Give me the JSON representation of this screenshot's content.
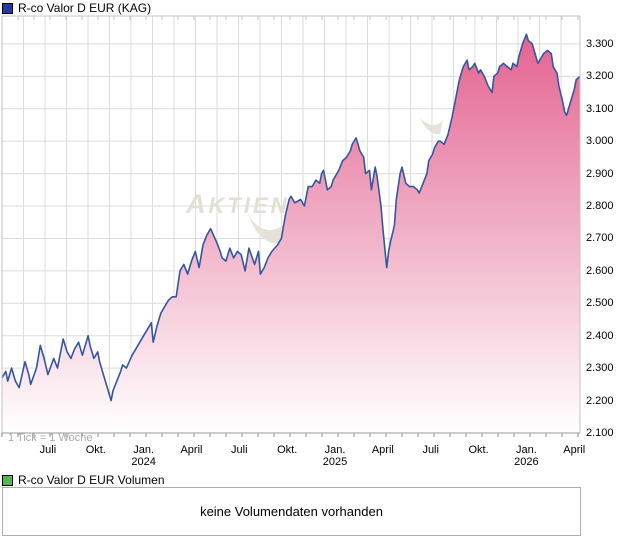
{
  "price_panel": {
    "legend": {
      "swatch_color": "#2438a0",
      "label": "R-co Valor D EUR (KAG)"
    },
    "tick_note": "1 Tick = 1 Woche"
  },
  "volume_panel": {
    "legend": {
      "swatch_color": "#55b455",
      "label": "R-co Valor D EUR Volumen"
    },
    "message": "keine Volumendaten vorhanden"
  },
  "watermark": {
    "text_big": "A",
    "text_rest": "KTIEN"
  },
  "colors": {
    "line": "#35569e",
    "fill_top": "#e25c8c",
    "fill_bottom": "#ffffff",
    "grid": "#dcdcdc",
    "axis": "#999999",
    "border": "#c4c4c4",
    "watermark": "#e6e2d8"
  },
  "chart_data": {
    "type": "area",
    "title": "R-co Valor D EUR (KAG)",
    "xlabel": "",
    "ylabel": "",
    "grid": true,
    "legend_position": "top-left",
    "xlim": [
      2023.26,
      2026.28
    ],
    "ylim": [
      2.1,
      3.386
    ],
    "y_ticks": [
      {
        "v": 3.3,
        "label": "3.300"
      },
      {
        "v": 3.2,
        "label": "3.200"
      },
      {
        "v": 3.1,
        "label": "3.100"
      },
      {
        "v": 3.0,
        "label": "3.000"
      },
      {
        "v": 2.9,
        "label": "2.900"
      },
      {
        "v": 2.8,
        "label": "2.800"
      },
      {
        "v": 2.7,
        "label": "2.700"
      },
      {
        "v": 2.6,
        "label": "2.600"
      },
      {
        "v": 2.5,
        "label": "2.500"
      },
      {
        "v": 2.4,
        "label": "2.400"
      },
      {
        "v": 2.3,
        "label": "2.300"
      },
      {
        "v": 2.2,
        "label": "2.200"
      },
      {
        "v": 2.1,
        "label": "2.100"
      }
    ],
    "x_ticks": [
      {
        "t": 2023.5,
        "label": "Juli"
      },
      {
        "t": 2023.75,
        "label": "Okt."
      },
      {
        "t": 2024.0,
        "label": "Jan.",
        "sublabel": "2024"
      },
      {
        "t": 2024.25,
        "label": "April"
      },
      {
        "t": 2024.5,
        "label": "Juli"
      },
      {
        "t": 2024.75,
        "label": "Okt."
      },
      {
        "t": 2025.0,
        "label": "Jan.",
        "sublabel": "2025"
      },
      {
        "t": 2025.25,
        "label": "April"
      },
      {
        "t": 2025.5,
        "label": "Juli"
      },
      {
        "t": 2025.75,
        "label": "Okt."
      },
      {
        "t": 2026.0,
        "label": "Jan.",
        "sublabel": "2026"
      },
      {
        "t": 2026.25,
        "label": "April"
      }
    ],
    "series": [
      {
        "name": "R-co Valor D EUR (KAG)",
        "points": [
          [
            2023.26,
            2.27
          ],
          [
            2023.28,
            2.29
          ],
          [
            2023.29,
            2.26
          ],
          [
            2023.31,
            2.3
          ],
          [
            2023.33,
            2.26
          ],
          [
            2023.35,
            2.24
          ],
          [
            2023.38,
            2.32
          ],
          [
            2023.4,
            2.28
          ],
          [
            2023.41,
            2.25
          ],
          [
            2023.44,
            2.3
          ],
          [
            2023.46,
            2.37
          ],
          [
            2023.48,
            2.33
          ],
          [
            2023.5,
            2.28
          ],
          [
            2023.53,
            2.33
          ],
          [
            2023.55,
            2.3
          ],
          [
            2023.58,
            2.39
          ],
          [
            2023.6,
            2.35
          ],
          [
            2023.62,
            2.33
          ],
          [
            2023.64,
            2.36
          ],
          [
            2023.66,
            2.38
          ],
          [
            2023.68,
            2.34
          ],
          [
            2023.71,
            2.4
          ],
          [
            2023.72,
            2.37
          ],
          [
            2023.74,
            2.33
          ],
          [
            2023.76,
            2.35
          ],
          [
            2023.77,
            2.32
          ],
          [
            2023.79,
            2.28
          ],
          [
            2023.81,
            2.24
          ],
          [
            2023.83,
            2.2
          ],
          [
            2023.84,
            2.23
          ],
          [
            2023.86,
            2.26
          ],
          [
            2023.88,
            2.29
          ],
          [
            2023.89,
            2.31
          ],
          [
            2023.91,
            2.3
          ],
          [
            2023.94,
            2.34
          ],
          [
            2023.96,
            2.36
          ],
          [
            2023.98,
            2.38
          ],
          [
            2024.0,
            2.4
          ],
          [
            2024.02,
            2.42
          ],
          [
            2024.04,
            2.44
          ],
          [
            2024.05,
            2.38
          ],
          [
            2024.07,
            2.43
          ],
          [
            2024.09,
            2.47
          ],
          [
            2024.11,
            2.49
          ],
          [
            2024.13,
            2.51
          ],
          [
            2024.15,
            2.52
          ],
          [
            2024.17,
            2.52
          ],
          [
            2024.19,
            2.6
          ],
          [
            2024.21,
            2.62
          ],
          [
            2024.23,
            2.59
          ],
          [
            2024.25,
            2.63
          ],
          [
            2024.27,
            2.66
          ],
          [
            2024.29,
            2.61
          ],
          [
            2024.31,
            2.68
          ],
          [
            2024.33,
            2.71
          ],
          [
            2024.35,
            2.73
          ],
          [
            2024.38,
            2.69
          ],
          [
            2024.4,
            2.66
          ],
          [
            2024.41,
            2.64
          ],
          [
            2024.43,
            2.63
          ],
          [
            2024.45,
            2.67
          ],
          [
            2024.47,
            2.64
          ],
          [
            2024.49,
            2.66
          ],
          [
            2024.51,
            2.65
          ],
          [
            2024.53,
            2.6
          ],
          [
            2024.55,
            2.67
          ],
          [
            2024.58,
            2.62
          ],
          [
            2024.6,
            2.66
          ],
          [
            2024.61,
            2.59
          ],
          [
            2024.63,
            2.61
          ],
          [
            2024.65,
            2.64
          ],
          [
            2024.67,
            2.66
          ],
          [
            2024.7,
            2.68
          ],
          [
            2024.72,
            2.7
          ],
          [
            2024.74,
            2.77
          ],
          [
            2024.76,
            2.82
          ],
          [
            2024.77,
            2.83
          ],
          [
            2024.79,
            2.81
          ],
          [
            2024.82,
            2.82
          ],
          [
            2024.84,
            2.8
          ],
          [
            2024.86,
            2.86
          ],
          [
            2024.88,
            2.86
          ],
          [
            2024.9,
            2.88
          ],
          [
            2024.92,
            2.87
          ],
          [
            2024.93,
            2.9
          ],
          [
            2024.94,
            2.91
          ],
          [
            2024.96,
            2.85
          ],
          [
            2024.98,
            2.86
          ],
          [
            2024.99,
            2.88
          ],
          [
            2025.02,
            2.91
          ],
          [
            2025.04,
            2.94
          ],
          [
            2025.06,
            2.95
          ],
          [
            2025.08,
            2.97
          ],
          [
            2025.09,
            2.99
          ],
          [
            2025.11,
            3.01
          ],
          [
            2025.13,
            2.97
          ],
          [
            2025.15,
            2.95
          ],
          [
            2025.16,
            2.9
          ],
          [
            2025.18,
            2.91
          ],
          [
            2025.19,
            2.85
          ],
          [
            2025.21,
            2.92
          ],
          [
            2025.22,
            2.89
          ],
          [
            2025.24,
            2.8
          ],
          [
            2025.25,
            2.73
          ],
          [
            2025.27,
            2.61
          ],
          [
            2025.28,
            2.66
          ],
          [
            2025.29,
            2.69
          ],
          [
            2025.31,
            2.74
          ],
          [
            2025.32,
            2.82
          ],
          [
            2025.34,
            2.9
          ],
          [
            2025.35,
            2.92
          ],
          [
            2025.37,
            2.87
          ],
          [
            2025.39,
            2.86
          ],
          [
            2025.41,
            2.86
          ],
          [
            2025.43,
            2.85
          ],
          [
            2025.44,
            2.84
          ],
          [
            2025.46,
            2.87
          ],
          [
            2025.48,
            2.9
          ],
          [
            2025.49,
            2.94
          ],
          [
            2025.51,
            2.96
          ],
          [
            2025.52,
            2.98
          ],
          [
            2025.54,
            3.0
          ],
          [
            2025.55,
            3.0
          ],
          [
            2025.57,
            2.99
          ],
          [
            2025.59,
            3.02
          ],
          [
            2025.61,
            3.07
          ],
          [
            2025.63,
            3.13
          ],
          [
            2025.65,
            3.19
          ],
          [
            2025.67,
            3.23
          ],
          [
            2025.69,
            3.25
          ],
          [
            2025.7,
            3.22
          ],
          [
            2025.72,
            3.23
          ],
          [
            2025.73,
            3.24
          ],
          [
            2025.75,
            3.21
          ],
          [
            2025.76,
            3.22
          ],
          [
            2025.78,
            3.2
          ],
          [
            2025.8,
            3.17
          ],
          [
            2025.82,
            3.15
          ],
          [
            2025.83,
            3.2
          ],
          [
            2025.85,
            3.21
          ],
          [
            2025.86,
            3.23
          ],
          [
            2025.88,
            3.24
          ],
          [
            2025.9,
            3.23
          ],
          [
            2025.92,
            3.22
          ],
          [
            2025.93,
            3.24
          ],
          [
            2025.95,
            3.23
          ],
          [
            2025.96,
            3.26
          ],
          [
            2025.98,
            3.3
          ],
          [
            2026.0,
            3.33
          ],
          [
            2026.01,
            3.31
          ],
          [
            2026.03,
            3.3
          ],
          [
            2026.05,
            3.26
          ],
          [
            2026.06,
            3.24
          ],
          [
            2026.08,
            3.26
          ],
          [
            2026.09,
            3.27
          ],
          [
            2026.11,
            3.28
          ],
          [
            2026.13,
            3.27
          ],
          [
            2026.14,
            3.23
          ],
          [
            2026.16,
            3.21
          ],
          [
            2026.17,
            3.17
          ],
          [
            2026.19,
            3.12
          ],
          [
            2026.2,
            3.09
          ],
          [
            2026.21,
            3.08
          ],
          [
            2026.23,
            3.12
          ],
          [
            2026.25,
            3.16
          ],
          [
            2026.26,
            3.19
          ],
          [
            2026.28,
            3.2
          ]
        ]
      }
    ]
  }
}
